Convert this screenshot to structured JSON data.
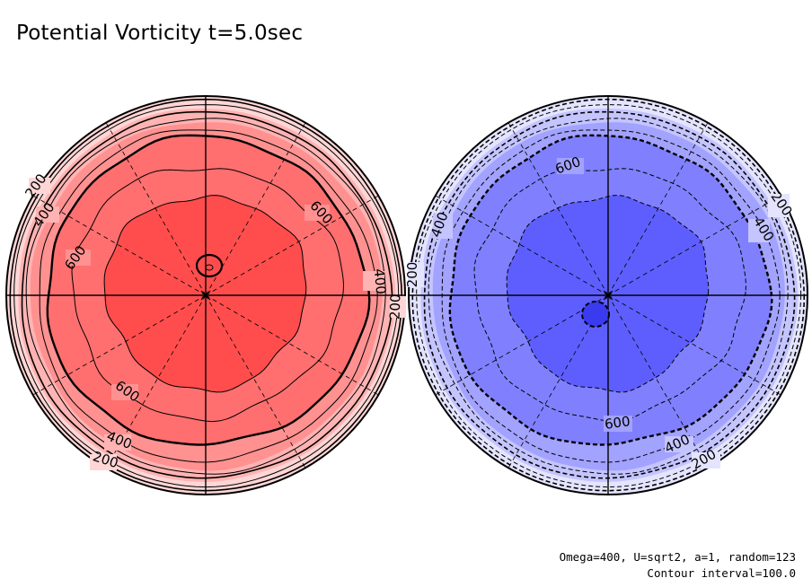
{
  "title": "Potential Vorticity t=5.0sec",
  "footer": {
    "line1": "Omega=400, U=sqrt2, a=1, random=123",
    "line2": "Contour interval=100.0"
  },
  "colors": {
    "north_fills": [
      "#ffd6d6",
      "#ffb3b3",
      "#ff9191",
      "#ff6f6f",
      "#ff4d4d",
      "#ff3f3f"
    ],
    "south_fills": [
      "#e4e4ff",
      "#c4c4ff",
      "#a2a2ff",
      "#8080ff",
      "#5e5eff",
      "#4545ff"
    ],
    "contour": "#000000"
  },
  "north_hemisphere": {
    "contour_labels": [
      "200",
      "400",
      "600",
      "600",
      "400",
      "200",
      "400",
      "600",
      "200"
    ]
  },
  "south_hemisphere": {
    "contour_labels": [
      "200",
      "400",
      "600",
      "200",
      "400",
      "600",
      "400",
      "200"
    ]
  }
}
